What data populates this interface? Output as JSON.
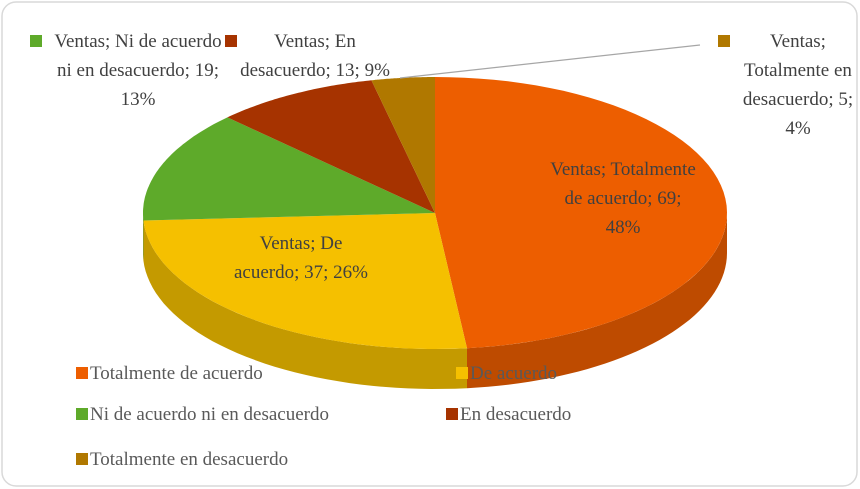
{
  "chart_data": {
    "type": "pie3d",
    "series_name": "Ventas",
    "categories": [
      "Totalmente de acuerdo",
      "De acuerdo",
      "Ni de acuerdo ni en desacuerdo",
      "En desacuerdo",
      "Totalmente en desacuerdo"
    ],
    "values": [
      69,
      37,
      19,
      13,
      5
    ],
    "value_labels": [
      "Ventas; Totalmente de acuerdo; 69; 48%",
      "Ventas; De acuerdo; 37; 26%",
      "Ventas; Ni de acuerdo ni en desacuerdo; 19; 13%",
      "Ventas; En desacuerdo; 13; 9%",
      "Ventas; Totalmente en desacuerdo; 5; 4%"
    ],
    "colors": [
      "#ED5E00",
      "#F5C000",
      "#5EAA2A",
      "#A63300",
      "#B07800"
    ],
    "legend": "bottom-left"
  }
}
